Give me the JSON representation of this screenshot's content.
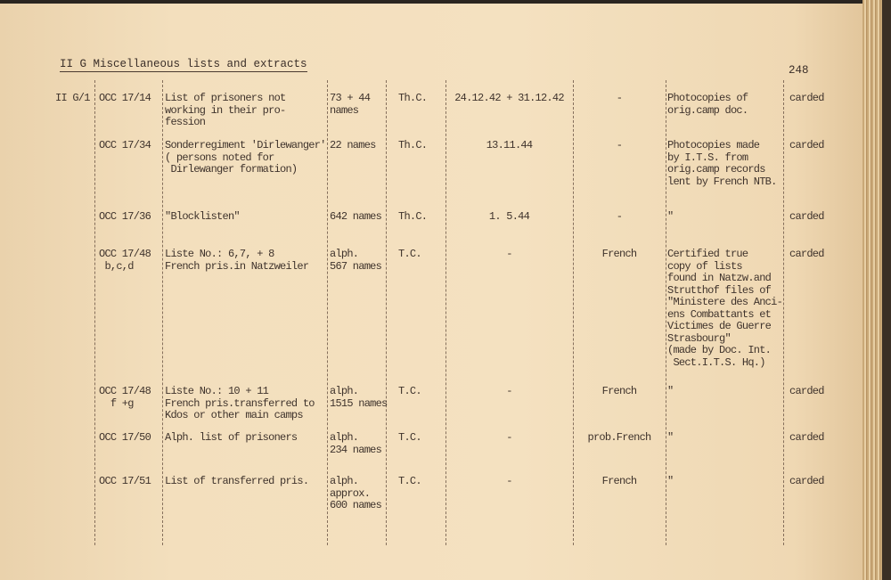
{
  "heading": "II G  Miscellaneous lists and extracts",
  "page_number": "248",
  "section_ref": "II G/1",
  "rows": [
    {
      "code": "OCC 17/14",
      "description": "List of prisoners not\nworking in their pro-\nfession",
      "count": "73 + 44\nnames",
      "type": "Th.C.",
      "dates": "24.12.42 + 31.12.42",
      "nationality": "-",
      "remarks": "Photocopies of\norig.camp doc.",
      "status": "carded"
    },
    {
      "code": "OCC 17/34",
      "description": "Sonderregiment 'Dirlewanger'\n( persons noted for\n Dirlewanger formation)",
      "count": "22 names",
      "type": "Th.C.",
      "dates": "13.11.44",
      "nationality": "-",
      "remarks": "Photocopies made\nby I.T.S. from\norig.camp records\nlent by French NTB.",
      "status": "carded"
    },
    {
      "code": "OCC 17/36",
      "description": "\"Blocklisten\"",
      "count": "642 names",
      "type": "Th.C.",
      "dates": "1. 5.44",
      "nationality": "-",
      "remarks": "\"",
      "status": "carded"
    },
    {
      "code": "OCC 17/48\n b,c,d",
      "description": "Liste No.: 6,7, + 8\nFrench pris.in Natzweiler",
      "count": "alph.\n567 names",
      "type": "T.C.",
      "dates": "-",
      "nationality": "French",
      "remarks": "Certified true\ncopy of lists\nfound in Natzw.and\nStrutthof files of\n\"Ministere des Anci-\nens Combattants et\nVictimes de Guerre\nStrasbourg\"\n(made by Doc. Int.\n Sect.I.T.S. Hq.)",
      "status": "carded"
    },
    {
      "code": "OCC 17/48\n  f +g",
      "description": "Liste No.: 10 + 11\nFrench pris.transferred to\nKdos or other main camps",
      "count": "alph.\n1515 names",
      "type": "T.C.",
      "dates": "-",
      "nationality": "French",
      "remarks": "\"",
      "status": "carded"
    },
    {
      "code": "OCC 17/50",
      "description": "Alph. list of prisoners",
      "count": "alph.\n234 names",
      "type": "T.C.",
      "dates": "-",
      "nationality": "prob.French",
      "remarks": "\"",
      "status": "carded"
    },
    {
      "code": "OCC 17/51",
      "description": "List of transferred pris.",
      "count": "alph.\napprox.\n600 names",
      "type": "T.C.",
      "dates": "-",
      "nationality": "French",
      "remarks": "\"",
      "status": "carded"
    }
  ]
}
